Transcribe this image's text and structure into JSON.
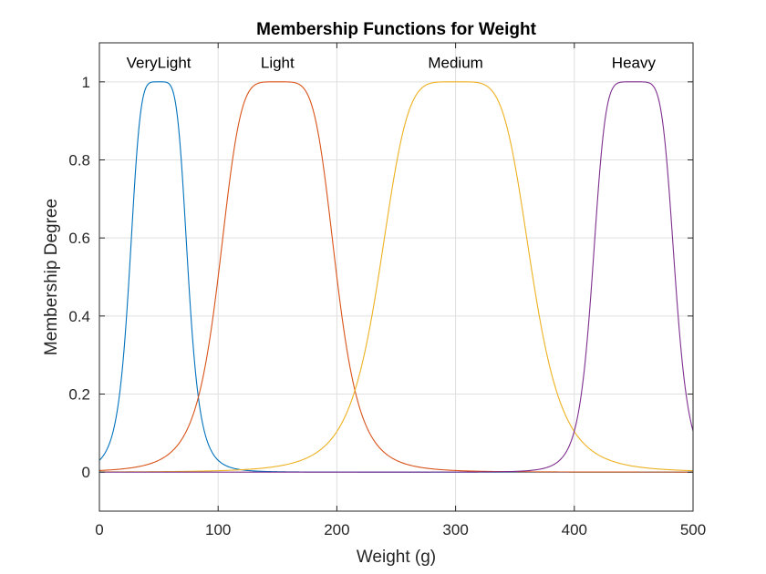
{
  "chart_data": {
    "type": "line",
    "title": "Membership Functions for Weight",
    "xlabel": "Weight (g)",
    "ylabel": "Membership Degree",
    "xlim": [
      0,
      500
    ],
    "ylim": [
      -0.1,
      1.1
    ],
    "xticks": [
      0,
      100,
      200,
      300,
      400,
      500
    ],
    "xtick_labels": [
      "0",
      "100",
      "200",
      "300",
      "400",
      "500"
    ],
    "yticks": [
      0,
      0.2,
      0.4,
      0.6,
      0.8,
      1
    ],
    "ytick_labels": [
      "0",
      "0.2",
      "0.4",
      "0.6",
      "0.8",
      "1"
    ],
    "grid": true,
    "series": [
      {
        "label": "VeryLight",
        "color": "#0072BD",
        "function": "gbellmf",
        "params": {
          "a": 25,
          "b": 2.5,
          "c": 50
        },
        "label_x": 50
      },
      {
        "label": "Light",
        "color": "#D95319",
        "function": "gbellmf",
        "params": {
          "a": 50,
          "b": 2.5,
          "c": 150
        },
        "label_x": 150
      },
      {
        "label": "Medium",
        "color": "#EDB120",
        "function": "gbellmf",
        "params": {
          "a": 65,
          "b": 2.5,
          "c": 300
        },
        "label_x": 300
      },
      {
        "label": "Heavy",
        "color": "#7E2F8E",
        "function": "gbellmf",
        "params": {
          "a": 35,
          "b": 3,
          "c": 450
        },
        "label_x": 450
      }
    ]
  }
}
